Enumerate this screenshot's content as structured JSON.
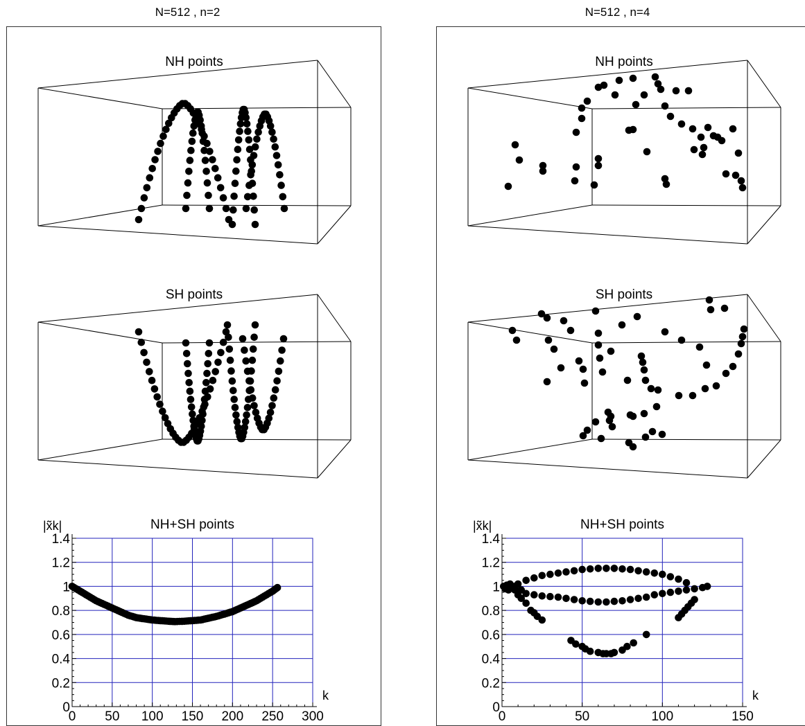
{
  "panels": [
    {
      "title": "N=512 , n=2"
    },
    {
      "title": "N=512 , n=4"
    }
  ],
  "colors": {
    "grid": "#2222bb",
    "marker": "#000000",
    "box": "#000000"
  },
  "chart_data": [
    {
      "type": "scatter3d",
      "panel": 0,
      "title": "NH points",
      "description_points": "four arc-shaped curves of points inside a 3D box"
    },
    {
      "type": "scatter3d",
      "panel": 0,
      "title": "SH points"
    },
    {
      "type": "scatter",
      "panel": 0,
      "title": "NH+SH points",
      "ylabel": "|x̃k|",
      "xlabel": "k",
      "xlim": [
        0,
        300
      ],
      "ylim": [
        0,
        1.4
      ],
      "xticks": [
        0,
        50,
        100,
        150,
        200,
        250,
        300
      ],
      "yticks": [
        0,
        0.2,
        0.4,
        0.6,
        0.8,
        1,
        1.2,
        1.4
      ],
      "grid": true,
      "series": [
        {
          "x": [
            0,
            10,
            20,
            30,
            40,
            50,
            60,
            70,
            80,
            90,
            100,
            110,
            120,
            128,
            140,
            150,
            160,
            170,
            180,
            190,
            200,
            210,
            220,
            230,
            240,
            250,
            256
          ],
          "y": [
            1.0,
            0.96,
            0.92,
            0.88,
            0.85,
            0.82,
            0.79,
            0.76,
            0.74,
            0.73,
            0.72,
            0.715,
            0.71,
            0.707,
            0.71,
            0.715,
            0.72,
            0.735,
            0.75,
            0.77,
            0.79,
            0.82,
            0.85,
            0.88,
            0.92,
            0.96,
            0.99
          ]
        }
      ]
    },
    {
      "type": "scatter3d",
      "panel": 1,
      "title": "NH points"
    },
    {
      "type": "scatter3d",
      "panel": 1,
      "title": "SH points"
    },
    {
      "type": "scatter",
      "panel": 1,
      "title": "NH+SH points",
      "ylabel": "|x̃k|",
      "xlabel": "k",
      "xlim": [
        0,
        150
      ],
      "ylim": [
        0,
        1.4
      ],
      "xticks": [
        0,
        50,
        100,
        150
      ],
      "yticks": [
        0,
        0.2,
        0.4,
        0.6,
        0.8,
        1,
        1.2,
        1.4
      ],
      "grid": true,
      "series": [
        {
          "x": [
            1,
            2,
            3,
            4,
            5,
            6,
            8,
            10,
            12,
            15,
            20,
            25,
            30,
            35,
            40,
            45,
            50,
            55,
            60,
            65,
            70,
            75,
            80,
            85,
            90,
            95,
            100,
            105,
            110,
            115,
            120,
            125,
            128
          ],
          "y": [
            1.0,
            0.98,
            1.01,
            0.97,
            1.02,
            0.99,
            1.0,
            0.96,
            0.97,
            0.94,
            0.93,
            0.92,
            0.915,
            0.91,
            0.9,
            0.89,
            0.88,
            0.875,
            0.87,
            0.87,
            0.875,
            0.88,
            0.89,
            0.9,
            0.91,
            0.93,
            0.94,
            0.95,
            0.96,
            0.97,
            0.98,
            0.99,
            1.0
          ]
        },
        {
          "x": [
            10,
            15,
            20,
            25,
            30,
            35,
            40,
            45,
            50,
            55,
            60,
            65,
            70,
            75,
            80,
            85,
            90,
            95,
            100,
            105,
            110,
            115
          ],
          "y": [
            1.02,
            1.05,
            1.07,
            1.09,
            1.1,
            1.11,
            1.12,
            1.13,
            1.14,
            1.145,
            1.15,
            1.15,
            1.15,
            1.145,
            1.14,
            1.13,
            1.12,
            1.11,
            1.1,
            1.08,
            1.06,
            1.03
          ]
        },
        {
          "x": [
            8,
            10,
            12,
            15,
            18,
            20,
            22,
            25,
            110,
            112,
            114,
            116,
            118,
            120
          ],
          "y": [
            0.97,
            0.93,
            0.9,
            0.86,
            0.8,
            0.78,
            0.75,
            0.72,
            0.74,
            0.77,
            0.8,
            0.83,
            0.86,
            0.89
          ]
        },
        {
          "x": [
            43,
            46,
            50,
            52,
            55,
            60,
            63,
            65,
            68,
            70,
            75,
            78,
            82,
            90
          ],
          "y": [
            0.55,
            0.52,
            0.5,
            0.48,
            0.46,
            0.45,
            0.44,
            0.44,
            0.44,
            0.45,
            0.47,
            0.5,
            0.53,
            0.6
          ]
        }
      ]
    }
  ]
}
